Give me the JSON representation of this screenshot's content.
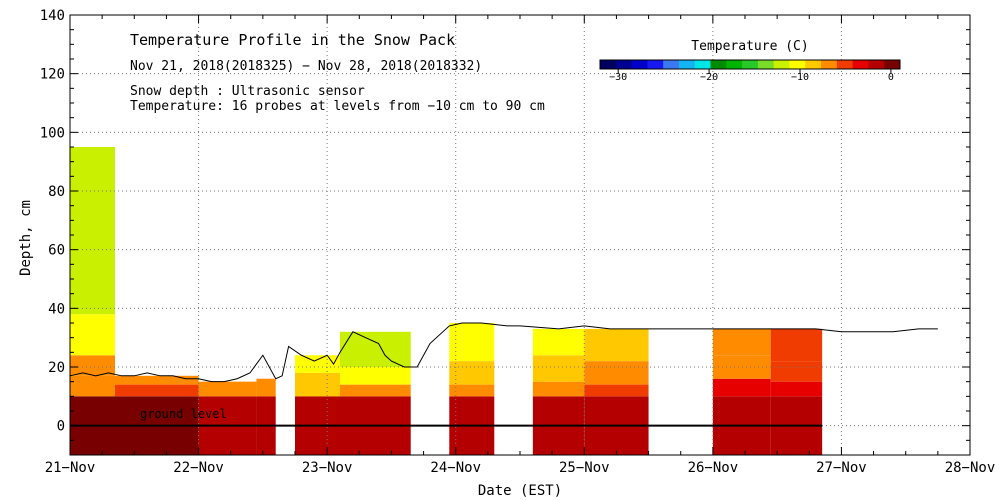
{
  "chart_data": {
    "type": "heatmap",
    "title": "Temperature Profile in the Snow Pack",
    "subtitle": "Nov 21, 2018(2018325) − Nov 28, 2018(2018332)",
    "notes": [
      "Snow depth : Ultrasonic sensor",
      "Temperature: 16 probes at levels from −10 cm to 90 cm"
    ],
    "ground_label": "ground level",
    "xlabel": "Date (EST)",
    "ylabel": "Depth, cm",
    "x_ticks": [
      "21−Nov",
      "22−Nov",
      "23−Nov",
      "24−Nov",
      "25−Nov",
      "26−Nov",
      "27−Nov",
      "28−Nov"
    ],
    "xlim": [
      0,
      7
    ],
    "ylim": [
      -10,
      140
    ],
    "y_ticks": [
      0,
      20,
      40,
      60,
      80,
      100,
      120,
      140
    ],
    "grid": true,
    "colorbar": {
      "label": "Temperature (C)",
      "range": [
        -32,
        1
      ],
      "ticks": [
        -30,
        -20,
        -10,
        0
      ],
      "tick_labels": [
        "−30",
        "−20",
        "−10",
        "0"
      ],
      "colors": [
        "#000060",
        "#000090",
        "#0000c8",
        "#1818f0",
        "#3c78f0",
        "#14b4f0",
        "#00e6e6",
        "#008c00",
        "#00b400",
        "#28c828",
        "#78dc28",
        "#c8f000",
        "#ffff00",
        "#ffc800",
        "#ff8c00",
        "#f03c00",
        "#e60000",
        "#b40000",
        "#780000"
      ]
    },
    "snow_depth": {
      "x": [
        0,
        0.1,
        0.2,
        0.3,
        0.4,
        0.5,
        0.6,
        0.7,
        0.8,
        0.9,
        1.0,
        1.1,
        1.2,
        1.3,
        1.4,
        1.5,
        1.6,
        1.65,
        1.7,
        1.8,
        1.9,
        2.0,
        2.05,
        2.1,
        2.2,
        2.3,
        2.4,
        2.45,
        2.5,
        2.6,
        2.7,
        2.8,
        2.95,
        3.05,
        3.2,
        3.4,
        3.5,
        3.8,
        4.0,
        4.2,
        4.4,
        4.6,
        4.8,
        5.0,
        5.2,
        5.4,
        5.6,
        5.8,
        6.0,
        6.2,
        6.4,
        6.6,
        6.75
      ],
      "depth": [
        17,
        18,
        17,
        18,
        17,
        17,
        18,
        17,
        17,
        16,
        16,
        15,
        15,
        16,
        18,
        24,
        16,
        17,
        27,
        24,
        22,
        24,
        21,
        25,
        32,
        30,
        28,
        24,
        22,
        20,
        20,
        28,
        34,
        35,
        35,
        34,
        34,
        33,
        34,
        33,
        33,
        33,
        33,
        33,
        33,
        33,
        33,
        33,
        32,
        32,
        32,
        33,
        33
      ]
    },
    "series_columns": [
      {
        "x0": 0,
        "x1": 0.35,
        "layers": [
          [
            -10,
            10,
            -0.5
          ],
          [
            10,
            17,
            -7
          ],
          [
            17,
            24,
            -6
          ],
          [
            24,
            38,
            -10
          ],
          [
            38,
            95,
            -12
          ]
        ]
      },
      {
        "x0": 0.35,
        "x1": 1.0,
        "layers": [
          [
            -10,
            10,
            -0.5
          ],
          [
            10,
            14,
            -5
          ],
          [
            14,
            17,
            -7
          ]
        ]
      },
      {
        "x0": 1.0,
        "x1": 1.45,
        "layers": [
          [
            -10,
            10,
            -1
          ],
          [
            10,
            15,
            -6
          ]
        ]
      },
      {
        "x0": 1.45,
        "x1": 1.6,
        "layers": [
          [
            -10,
            10,
            -2
          ],
          [
            10,
            16,
            -7
          ]
        ]
      },
      {
        "x0": 1.75,
        "x1": 2.1,
        "layers": [
          [
            -10,
            10,
            -2
          ],
          [
            10,
            18,
            -8
          ],
          [
            18,
            24,
            -11
          ]
        ]
      },
      {
        "x0": 2.1,
        "x1": 2.65,
        "layers": [
          [
            -10,
            10,
            -2
          ],
          [
            10,
            14,
            -7
          ],
          [
            14,
            20,
            -10
          ],
          [
            20,
            32,
            -12
          ]
        ]
      },
      {
        "x0": 2.95,
        "x1": 3.3,
        "layers": [
          [
            -10,
            10,
            -2
          ],
          [
            10,
            14,
            -6
          ],
          [
            14,
            22,
            -9
          ],
          [
            22,
            35,
            -11
          ]
        ]
      },
      {
        "x0": 3.6,
        "x1": 4.0,
        "layers": [
          [
            -10,
            10,
            -2
          ],
          [
            10,
            15,
            -6
          ],
          [
            15,
            24,
            -8
          ],
          [
            24,
            33,
            -10
          ]
        ]
      },
      {
        "x0": 4.0,
        "x1": 4.5,
        "layers": [
          [
            -10,
            10,
            -2
          ],
          [
            10,
            14,
            -5
          ],
          [
            14,
            22,
            -7
          ],
          [
            22,
            33,
            -9
          ]
        ]
      },
      {
        "x0": 5.0,
        "x1": 5.45,
        "layers": [
          [
            -10,
            10,
            -1
          ],
          [
            10,
            16,
            -4
          ],
          [
            16,
            24,
            -6
          ],
          [
            24,
            33,
            -7
          ]
        ]
      },
      {
        "x0": 5.45,
        "x1": 5.85,
        "layers": [
          [
            -10,
            10,
            -1
          ],
          [
            10,
            15,
            -4
          ],
          [
            15,
            22,
            -5
          ],
          [
            22,
            33,
            -5
          ]
        ]
      }
    ]
  }
}
